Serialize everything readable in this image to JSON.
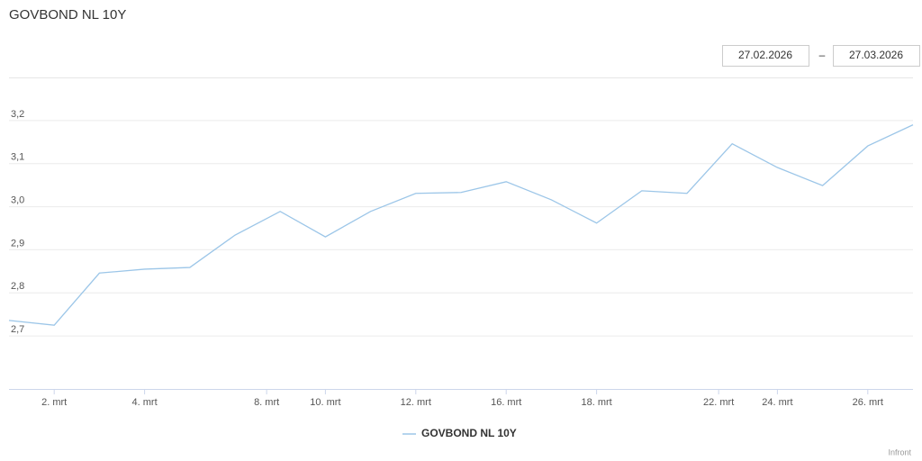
{
  "chart_data": {
    "type": "line",
    "title": "GOVBOND NL 10Y",
    "date_from": "27.02.2026",
    "date_separator": "–",
    "date_to": "27.03.2026",
    "credit": "Infront",
    "x": [
      0,
      1,
      2,
      3,
      4,
      5,
      6,
      7,
      8,
      9,
      10,
      11,
      12,
      13,
      14,
      15,
      16,
      17,
      18,
      19,
      20
    ],
    "xlim": [
      0,
      20
    ],
    "xticks": [
      {
        "value": 1,
        "label": "2. mrt"
      },
      {
        "value": 3,
        "label": "4. mrt"
      },
      {
        "value": 5.7,
        "label": "8. mrt"
      },
      {
        "value": 7,
        "label": "10. mrt"
      },
      {
        "value": 9,
        "label": "12. mrt"
      },
      {
        "value": 11,
        "label": "16. mrt"
      },
      {
        "value": 13,
        "label": "18. mrt"
      },
      {
        "value": 15.7,
        "label": "22. mrt"
      },
      {
        "value": 17,
        "label": "24. mrt"
      },
      {
        "value": 19,
        "label": "26. mrt"
      }
    ],
    "ylim": [
      2.577,
      3.3
    ],
    "yticks": [
      {
        "value": 2.7,
        "label": "2,7"
      },
      {
        "value": 2.8,
        "label": "2,8"
      },
      {
        "value": 2.9,
        "label": "2,9"
      },
      {
        "value": 3.0,
        "label": "3,0"
      },
      {
        "value": 3.1,
        "label": "3,1"
      },
      {
        "value": 3.2,
        "label": "3,2"
      }
    ],
    "grid": true,
    "legend": "bottom",
    "series": [
      {
        "name": "GOVBOND NL 10Y",
        "color": "#9cc6e8",
        "values": [
          2.736,
          2.725,
          2.846,
          2.855,
          2.859,
          2.934,
          2.989,
          2.93,
          2.989,
          3.031,
          3.033,
          3.058,
          3.016,
          2.962,
          3.037,
          3.031,
          3.146,
          3.091,
          3.049,
          3.141,
          3.19
        ]
      }
    ]
  }
}
